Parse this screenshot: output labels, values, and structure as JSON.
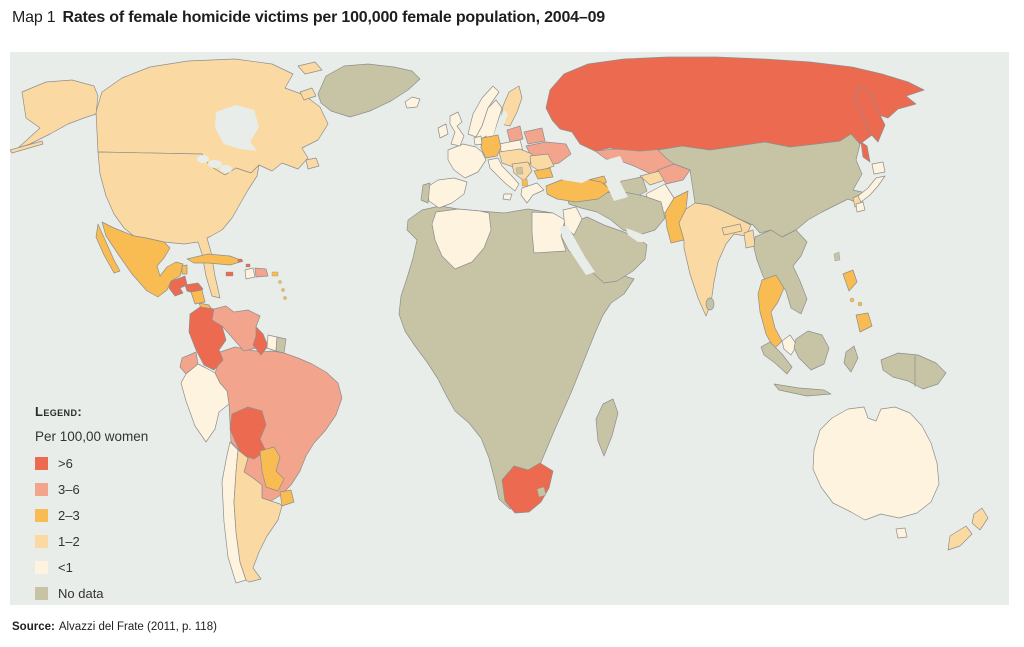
{
  "title": {
    "prefix": "Map 1",
    "main": "Rates of female homicide victims per 100,000 female population, 2004–09"
  },
  "source": {
    "label": "Source:",
    "text": "Alvazzi del Frate (2011, p. 118)"
  },
  "legend": {
    "heading": "Legend:",
    "subtitle": "Per 100,00 women",
    "items": [
      {
        "key": "gt6",
        "label": ">6",
        "color": "#ec6a50"
      },
      {
        "key": "3-6",
        "label": "3–6",
        "color": "#f2a48c"
      },
      {
        "key": "2-3",
        "label": "2–3",
        "color": "#f8bc52"
      },
      {
        "key": "1-2",
        "label": "1–2",
        "color": "#fbd9a2"
      },
      {
        "key": "lt1",
        "label": "<1",
        "color": "#fdf3de"
      },
      {
        "key": "nodata",
        "label": "No data",
        "color": "#c6c4a5"
      }
    ]
  },
  "map": {
    "ocean": "#e8edea",
    "border": "#8e8e8e",
    "countries": {
      "greenland": "nodata",
      "iceland": "lt1",
      "canada": "1-2",
      "usa": "1-2",
      "mexico": "2-3",
      "belize": "2-3",
      "guatemala": "gt6",
      "honduras": "gt6",
      "nicaragua": "2-3",
      "costa-rica": "2-3",
      "panama": "2-3",
      "cuba": "2-3",
      "jamaica": "gt6",
      "haiti": "lt1",
      "dominican-republic": "3-6",
      "puerto-rico": "2-3",
      "bahamas": "gt6",
      "lesser-antilles": "2-3",
      "colombia": "gt6",
      "venezuela": "3-6",
      "guyana": "gt6",
      "suriname": "lt1",
      "french-guiana": "nodata",
      "ecuador": "3-6",
      "peru": "lt1",
      "brazil": "3-6",
      "bolivia": "gt6",
      "paraguay": "2-3",
      "uruguay": "2-3",
      "chile": "lt1",
      "argentina": "1-2",
      "uk": "lt1",
      "ireland": "lt1",
      "norway": "lt1",
      "sweden": "lt1",
      "denmark": "lt1",
      "finland": "1-2",
      "baltic-states": "3-6",
      "poland": "lt1",
      "germany": "2-3",
      "benelux": "lt1",
      "france": "lt1",
      "spain": "lt1",
      "portugal": "nodata",
      "italy": "lt1",
      "central-europe": "1-2",
      "balkans": "1-2",
      "bosnia": "nodata",
      "albania": "2-3",
      "greece": "lt1",
      "romania": "1-2",
      "bulgaria": "2-3",
      "belarus": "3-6",
      "ukraine": "3-6",
      "turkey": "2-3",
      "russia": "gt6",
      "kazakhstan": "3-6",
      "georgia": "2-3",
      "armenia": "gt6",
      "azerbaijan": "2-3",
      "turkmenistan": "nodata",
      "uzbekistan": "1-2",
      "kyrgyzstan-tajikistan": "3-6",
      "afghanistan": "lt1",
      "pakistan": "2-3",
      "india": "1-2",
      "nepal": "1-2",
      "bangladesh": "1-2",
      "sri-lanka": "nodata",
      "china-mongolia": "nodata",
      "south-korea": "1-2",
      "japan": "lt1",
      "taiwan": "nodata",
      "indochina": "nodata",
      "thailand": "2-3",
      "malaysia": "lt1",
      "indonesia": "nodata",
      "new-guinea": "nodata",
      "philippines": "2-3",
      "africa": "nodata",
      "algeria": "lt1",
      "egypt": "lt1",
      "south-africa": "gt6",
      "lesotho": "nodata",
      "madagascar": "nodata",
      "arabia": "nodata",
      "iran-iraq-syria": "nodata",
      "israel-jordan": "lt1",
      "australia": "lt1",
      "new-zealand": "1-2"
    }
  }
}
